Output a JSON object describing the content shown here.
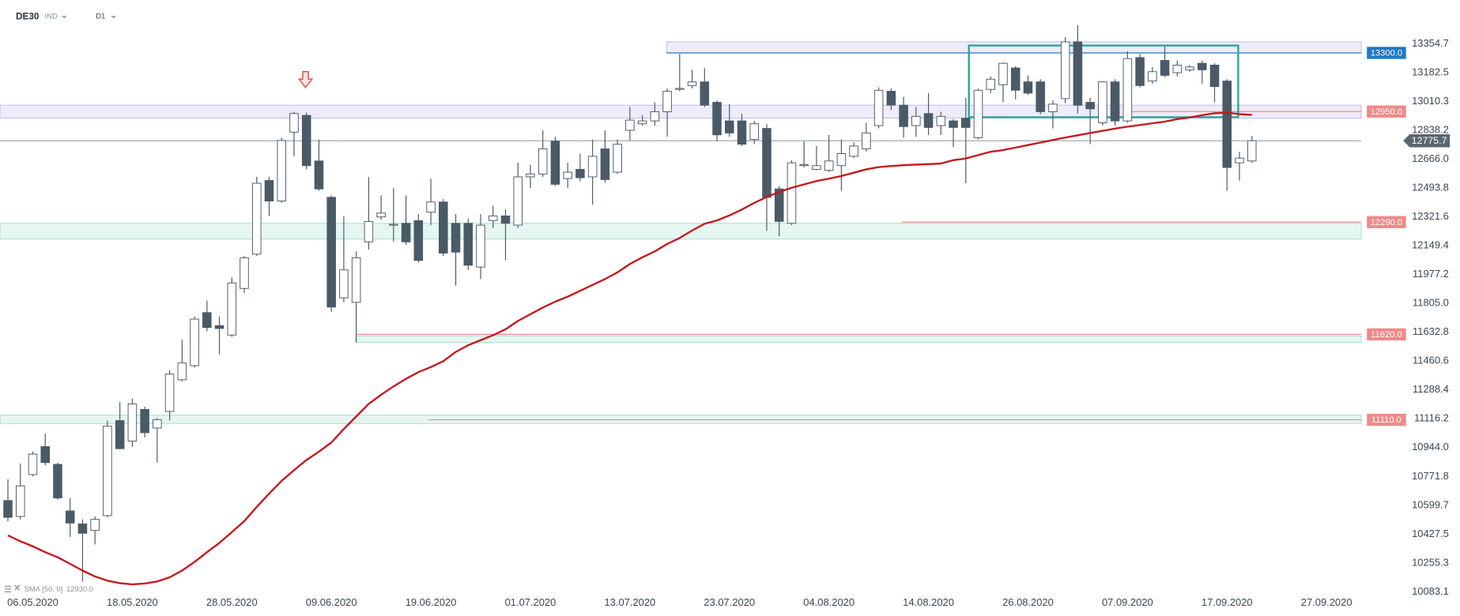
{
  "chart_data": {
    "type": "candlestick",
    "symbol": "DE30",
    "instrument_type": "IND",
    "timeframe": "D1",
    "categories": [
      null,
      null,
      "06.05.2020",
      null,
      null,
      null,
      null,
      null,
      null,
      null,
      "18.05.2020",
      null,
      null,
      null,
      null,
      null,
      null,
      null,
      "28.05.2020",
      null,
      null,
      null,
      null,
      null,
      null,
      null,
      "09.06.2020",
      null,
      null,
      null,
      null,
      null,
      null,
      null,
      "19.06.2020",
      null,
      null,
      null,
      null,
      null,
      null,
      null,
      "01.07.2020",
      null,
      null,
      null,
      null,
      null,
      null,
      null,
      "13.07.2020",
      null,
      null,
      null,
      null,
      null,
      null,
      null,
      "23.07.2020",
      null,
      null,
      null,
      null,
      null,
      null,
      null,
      "04.08.2020",
      null,
      null,
      null,
      null,
      null,
      null,
      null,
      "14.08.2020",
      null,
      null,
      null,
      null,
      null,
      null,
      null,
      "26.08.2020",
      null,
      null,
      null,
      null,
      null,
      null,
      null,
      "07.09.2020",
      null,
      null,
      null,
      null,
      null,
      null,
      null,
      "17.09.2020",
      null,
      null,
      null,
      null,
      null,
      null,
      null,
      "27.09.2020"
    ],
    "open": [
      10628,
      10533,
      10783,
      10950,
      10844,
      10566,
      10489,
      10450,
      10538,
      11105,
      10983,
      11172,
      11061,
      11160,
      11349,
      11433,
      11750,
      11672,
      11616,
      11894,
      12099,
      12538,
      12416,
      12827,
      12927,
      12655,
      12438,
      11838,
      11811,
      12172,
      12321,
      12272,
      12283,
      12299,
      12349,
      12410,
      12283,
      12283,
      12022,
      12299,
      12327,
      12272,
      12560,
      12577,
      12772,
      12550,
      12605,
      12560,
      12727,
      12588,
      12838,
      12877,
      12894,
      12949,
      13082,
      13105,
      13127,
      13005,
      12894,
      12894,
      12783,
      12849,
      12488,
      12283,
      12627,
      12605,
      12599,
      12627,
      12683,
      12727,
      12866,
      13071,
      12988,
      12866,
      12938,
      12866,
      12894,
      12910,
      12794,
      13082,
      13110,
      13210,
      13127,
      13127,
      12949,
      13027,
      13366,
      13005,
      12883,
      13127,
      12894,
      13272,
      13132,
      13255,
      13182,
      13199,
      13238,
      13227,
      13132,
      12644,
      12655,
      null,
      null,
      null,
      null,
      null,
      null
    ],
    "high": [
      10755,
      10850,
      10920,
      11027,
      10855,
      10644,
      10516,
      10533,
      11105,
      11216,
      11238,
      11188,
      11122,
      11405,
      11588,
      11727,
      11822,
      11727,
      11961,
      12088,
      12560,
      12560,
      12794,
      12949,
      12944,
      12783,
      12449,
      12327,
      12116,
      12560,
      12449,
      12494,
      12449,
      12338,
      12549,
      12427,
      12338,
      12311,
      12338,
      12388,
      12366,
      12644,
      12633,
      12838,
      12799,
      12644,
      12699,
      12783,
      12838,
      12783,
      12977,
      12927,
      13005,
      13088,
      13294,
      13199,
      13210,
      13016,
      12994,
      12938,
      12894,
      12877,
      12505,
      12660,
      12772,
      12744,
      12810,
      12783,
      12766,
      12883,
      13094,
      13088,
      13038,
      12977,
      13060,
      12949,
      12905,
      13032,
      13088,
      13160,
      13244,
      13221,
      13166,
      13143,
      13016,
      13394,
      13466,
      13032,
      13132,
      13143,
      13310,
      13294,
      13216,
      13338,
      13255,
      13227,
      13255,
      13238,
      13143,
      12710,
      12805,
      null,
      null,
      null,
      null,
      null,
      null
    ],
    "low": [
      10505,
      10516,
      10772,
      10839,
      10633,
      10411,
      10144,
      10366,
      10527,
      10933,
      10950,
      11005,
      10855,
      11105,
      11338,
      11422,
      11638,
      11500,
      11605,
      11866,
      12088,
      12327,
      12405,
      12683,
      12605,
      12477,
      11755,
      11811,
      11572,
      12127,
      12305,
      12172,
      12155,
      12050,
      12272,
      12088,
      11911,
      12005,
      11950,
      12255,
      12061,
      12255,
      12494,
      12560,
      12505,
      12494,
      12533,
      12394,
      12527,
      12577,
      12777,
      12866,
      12866,
      12799,
      13071,
      13088,
      12977,
      12772,
      12799,
      12744,
      12755,
      12238,
      12205,
      12272,
      12616,
      12599,
      12588,
      12477,
      12672,
      12711,
      12849,
      12960,
      12794,
      12799,
      12810,
      12810,
      12738,
      12522,
      12783,
      13060,
      13005,
      13022,
      13049,
      12933,
      12849,
      12999,
      12938,
      12755,
      12866,
      12866,
      12883,
      13094,
      13116,
      13155,
      13160,
      13188,
      13116,
      13005,
      12477,
      12538,
      12644,
      null,
      null,
      null,
      null,
      null,
      null
    ],
    "close": [
      10528,
      10716,
      10905,
      10855,
      10644,
      10494,
      10433,
      10516,
      11072,
      10938,
      11205,
      11033,
      11111,
      11383,
      11449,
      11711,
      11661,
      11655,
      11927,
      12077,
      12522,
      12416,
      12777,
      12938,
      12627,
      12488,
      11783,
      12005,
      12077,
      12294,
      12344,
      12277,
      12172,
      12061,
      12410,
      12105,
      12111,
      12033,
      12272,
      12327,
      12283,
      12560,
      12577,
      12727,
      12516,
      12588,
      12555,
      12683,
      12544,
      12755,
      12899,
      12894,
      12949,
      13071,
      13088,
      13127,
      12988,
      12811,
      12822,
      12755,
      12877,
      12438,
      12294,
      12644,
      12633,
      12627,
      12655,
      12699,
      12744,
      12822,
      13077,
      12988,
      12860,
      12921,
      12855,
      12921,
      12855,
      12855,
      13077,
      13143,
      13238,
      13077,
      13060,
      12949,
      12994,
      13366,
      12988,
      12966,
      13127,
      12894,
      13266,
      13105,
      13188,
      13166,
      13227,
      13216,
      13199,
      13099,
      12616,
      12672,
      12775.7,
      null,
      null,
      null,
      null,
      null,
      null
    ],
    "up_color": "#ffffff",
    "down_color": "#4a5a66",
    "overlays": [
      {
        "name": "SMA [50, 0]",
        "color": "#c8161d",
        "last_label": "12930.0",
        "values": [
          10420,
          10385,
          10355,
          10320,
          10290,
          10250,
          10210,
          10175,
          10150,
          10135,
          10128,
          10133,
          10145,
          10170,
          10210,
          10262,
          10320,
          10375,
          10440,
          10505,
          10590,
          10670,
          10745,
          10810,
          10870,
          10920,
          10975,
          11055,
          11130,
          11205,
          11260,
          11310,
          11355,
          11395,
          11425,
          11460,
          11515,
          11555,
          11585,
          11615,
          11650,
          11700,
          11740,
          11780,
          11815,
          11845,
          11880,
          11915,
          11950,
          11990,
          12040,
          12080,
          12115,
          12160,
          12195,
          12240,
          12280,
          12300,
          12330,
          12365,
          12405,
          12440,
          12470,
          12495,
          12515,
          12535,
          12550,
          12565,
          12585,
          12605,
          12618,
          12625,
          12630,
          12633,
          12636,
          12640,
          12660,
          12670,
          12690,
          12710,
          12720,
          12735,
          12750,
          12765,
          12780,
          12795,
          12808,
          12822,
          12835,
          12848,
          12860,
          12870,
          12880,
          12890,
          12905,
          12915,
          12928,
          12940,
          12943,
          12935,
          12930,
          null,
          null,
          null,
          null,
          null,
          null
        ]
      }
    ],
    "levels": [
      {
        "value": 13300,
        "label": "13300.0",
        "color": "#1f77c4"
      },
      {
        "value": 12950,
        "label": "12950.0",
        "color": "#ef8a8a"
      },
      {
        "value": 12290,
        "label": "12290.0",
        "color": "#ef8a8a"
      },
      {
        "value": 11620,
        "label": "11620.0",
        "color": "#ef8a8a"
      },
      {
        "value": 11110,
        "label": "11110.0",
        "color": "#ef8a8a"
      }
    ],
    "zones": [
      {
        "from": 13300,
        "to": 13366,
        "color": "#7b6fd6"
      },
      {
        "from": 12911,
        "to": 12988,
        "color": "#7b6fd6"
      },
      {
        "from": 12189,
        "to": 12283,
        "color": "#3cbf96"
      },
      {
        "from": 11572,
        "to": 11611,
        "color": "#3cbf96"
      },
      {
        "from": 11088,
        "to": 11138,
        "color": "#3cbf96"
      }
    ],
    "box": {
      "high": 13344,
      "low": 12916,
      "color": "#26a69a"
    },
    "last_price": 12775.7,
    "ylim": [
      10033.5,
      13615.7
    ],
    "yticks": [
      13354.7,
      {
        "value": 13182.5,
        "label": "13182.5"
      },
      13010.3,
      12838.2,
      {
        "value": 12666.0,
        "label": "12666.0"
      },
      12493.8,
      12321.6,
      12149.4,
      11977.2,
      {
        "value": 11805.0,
        "label": "11805.0"
      },
      11632.8,
      11460.6,
      11288.4,
      11116.2,
      {
        "value": 10944.0,
        "label": "10944.0"
      },
      10771.8,
      10599.7,
      10427.5,
      10255.3,
      10083.1
    ]
  }
}
